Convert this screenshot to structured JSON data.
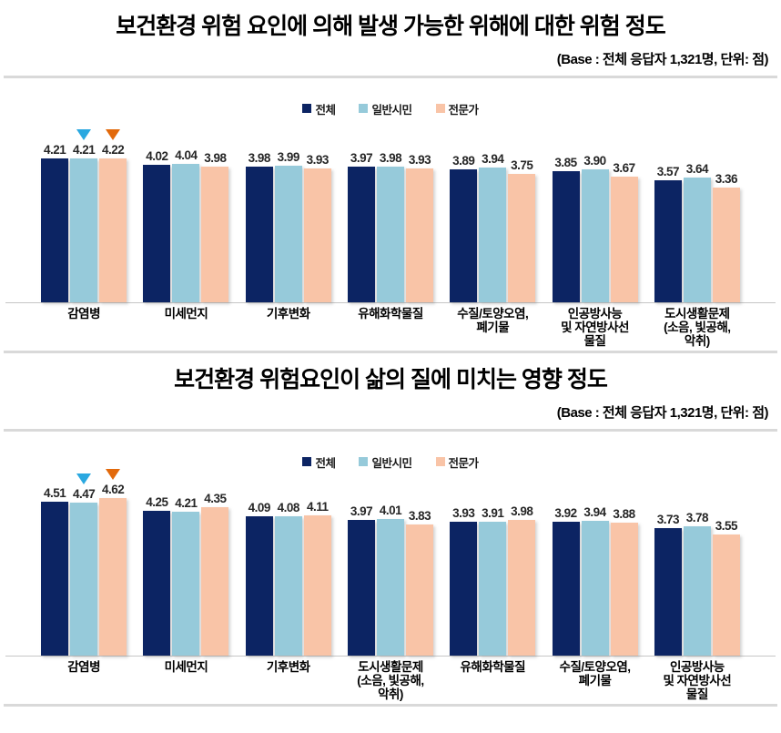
{
  "chart_data": [
    {
      "type": "bar",
      "title": "보건환경 위험 요인에 의해 발생 가능한 위해에 대한 위험 정도",
      "base_note": "(Base : 전체 응답자 1,321명, 단위: 점)",
      "legend_position": "top-center",
      "grid": false,
      "ylim": [
        0,
        5
      ],
      "categories": [
        "감염병",
        "미세먼지",
        "기후변화",
        "유해화학물질",
        "수질/토양오염,\n폐기물",
        "인공방사능\n및 자연방사선\n물질",
        "도시생활문제\n(소음, 빛공해,\n악취)"
      ],
      "series": [
        {
          "name": "전체",
          "color": "#0c2463",
          "values": [
            4.21,
            4.02,
            3.98,
            3.97,
            3.89,
            3.85,
            3.57
          ]
        },
        {
          "name": "일반시민",
          "color": "#96cada",
          "values": [
            4.21,
            4.04,
            3.99,
            3.98,
            3.94,
            3.9,
            3.64
          ]
        },
        {
          "name": "전문가",
          "color": "#f9c4a7",
          "values": [
            4.22,
            3.98,
            3.93,
            3.93,
            3.75,
            3.67,
            3.36
          ]
        }
      ],
      "markers": [
        {
          "category_index": 0,
          "series_index": 1,
          "shape": "triangle-down",
          "color": "#2aa8e0"
        },
        {
          "category_index": 0,
          "series_index": 2,
          "shape": "triangle-down",
          "color": "#e2690b"
        }
      ]
    },
    {
      "type": "bar",
      "title": "보건환경 위험요인이 삶의 질에 미치는 영향 정도",
      "base_note": "(Base : 전체 응답자 1,321명, 단위: 점)",
      "legend_position": "top-center",
      "grid": false,
      "ylim": [
        0,
        5
      ],
      "categories": [
        "감염병",
        "미세먼지",
        "기후변화",
        "도시생활문제\n(소음, 빛공해,\n악취)",
        "유해화학물질",
        "수질/토양오염,\n폐기물",
        "인공방사능\n및 자연방사선\n물질"
      ],
      "series": [
        {
          "name": "전체",
          "color": "#0c2463",
          "values": [
            4.51,
            4.25,
            4.09,
            3.97,
            3.93,
            3.92,
            3.73
          ]
        },
        {
          "name": "일반시민",
          "color": "#96cada",
          "values": [
            4.47,
            4.21,
            4.08,
            4.01,
            3.91,
            3.94,
            3.78
          ]
        },
        {
          "name": "전문가",
          "color": "#f9c4a7",
          "values": [
            4.62,
            4.35,
            4.11,
            3.83,
            3.98,
            3.88,
            3.55
          ]
        }
      ],
      "markers": [
        {
          "category_index": 0,
          "series_index": 1,
          "shape": "triangle-down",
          "color": "#2aa8e0"
        },
        {
          "category_index": 0,
          "series_index": 2,
          "shape": "triangle-down",
          "color": "#e2690b"
        }
      ]
    }
  ]
}
